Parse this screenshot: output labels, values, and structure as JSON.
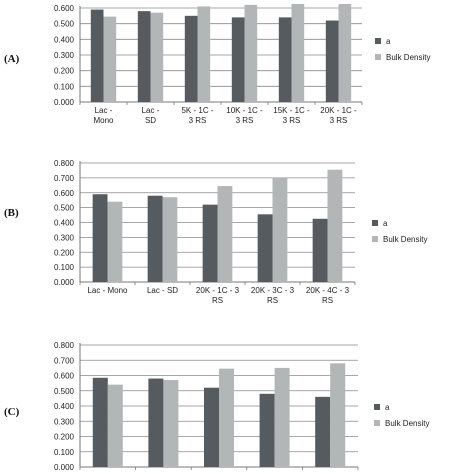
{
  "colors": {
    "series_a": "#555b5e",
    "series_bulk": "#b2b6b6",
    "grid": "#8a8a8a",
    "axis": "#777777"
  },
  "chart_data": [
    {
      "type": "bar",
      "panel": "(A)",
      "categories": [
        "Lac - Mono",
        "Lac - SD",
        "5K - 1C - 3 RS",
        "10K - 1C - 3 RS",
        "15K - 1C - 3 RS",
        "20K - 1C - 3 RS"
      ],
      "series": [
        {
          "name": "a",
          "values": [
            0.59,
            0.58,
            0.55,
            0.54,
            0.54,
            0.52
          ]
        },
        {
          "name": "Bulk Density",
          "values": [
            0.545,
            0.57,
            0.61,
            0.62,
            0.63,
            0.645
          ]
        }
      ],
      "ylim": [
        0,
        0.6
      ],
      "yticks": [
        "0.000",
        "0.100",
        "0.200",
        "0.300",
        "0.400",
        "0.500",
        "0.600"
      ],
      "grid": true,
      "legend": "right"
    },
    {
      "type": "bar",
      "panel": "(B)",
      "categories": [
        "Lac - Mono",
        "Lac - SD",
        "20K - 1C - 3 RS",
        "20K - 3C - 3 RS",
        "20K - 4C - 3 RS"
      ],
      "series": [
        {
          "name": "a",
          "values": [
            0.59,
            0.58,
            0.52,
            0.455,
            0.425
          ]
        },
        {
          "name": "Bulk Density",
          "values": [
            0.54,
            0.57,
            0.645,
            0.7,
            0.755
          ]
        }
      ],
      "ylim": [
        0,
        0.8
      ],
      "yticks": [
        "0.000",
        "0.100",
        "0.200",
        "0.300",
        "0.400",
        "0.500",
        "0.600",
        "0.700",
        "0.800"
      ],
      "grid": true,
      "legend": "right"
    },
    {
      "type": "bar",
      "panel": "(C)",
      "categories": [
        "",
        "",
        "",
        "",
        ""
      ],
      "series": [
        {
          "name": "a",
          "values": [
            0.585,
            0.58,
            0.52,
            0.48,
            0.46
          ]
        },
        {
          "name": "Bulk Density",
          "values": [
            0.54,
            0.57,
            0.645,
            0.65,
            0.68
          ]
        }
      ],
      "ylim": [
        0,
        0.8
      ],
      "yticks": [
        "0.000",
        "0.100",
        "0.200",
        "0.300",
        "0.400",
        "0.500",
        "0.600",
        "0.700",
        "0.800"
      ],
      "grid": true,
      "legend": "right"
    }
  ]
}
